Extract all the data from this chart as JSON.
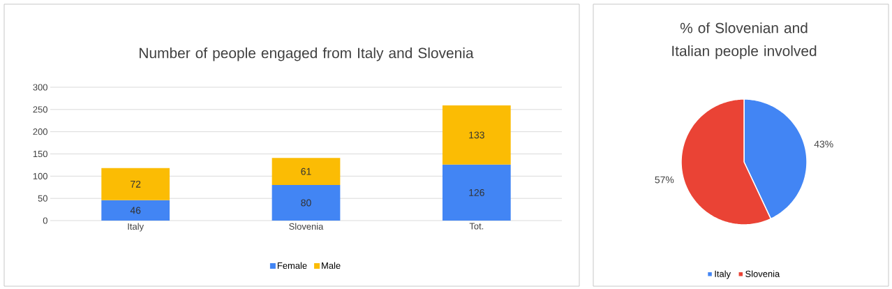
{
  "chart_data": [
    {
      "type": "bar",
      "title": "Number of people engaged from Italy and Slovenia",
      "categories": [
        "Italy",
        "Slovenia",
        "Tot."
      ],
      "series": [
        {
          "name": "Female",
          "color": "#4285f4",
          "values": [
            46,
            80,
            126
          ]
        },
        {
          "name": "Male",
          "color": "#fbbc04",
          "values": [
            72,
            61,
            133
          ]
        }
      ],
      "stacked": true,
      "ylim": [
        0,
        300
      ],
      "yticks": [
        0,
        50,
        100,
        150,
        200,
        250,
        300
      ],
      "grid": "y",
      "data_labels": true,
      "legend": "bottom"
    },
    {
      "type": "pie",
      "title": "% of Slovenian and Italian people involved",
      "categories": [
        "Italy",
        "Slovenia"
      ],
      "values": [
        43,
        57
      ],
      "colors": [
        "#4285f4",
        "#ea4335"
      ],
      "value_labels": [
        "43%",
        "57%"
      ],
      "legend": "bottom"
    }
  ]
}
